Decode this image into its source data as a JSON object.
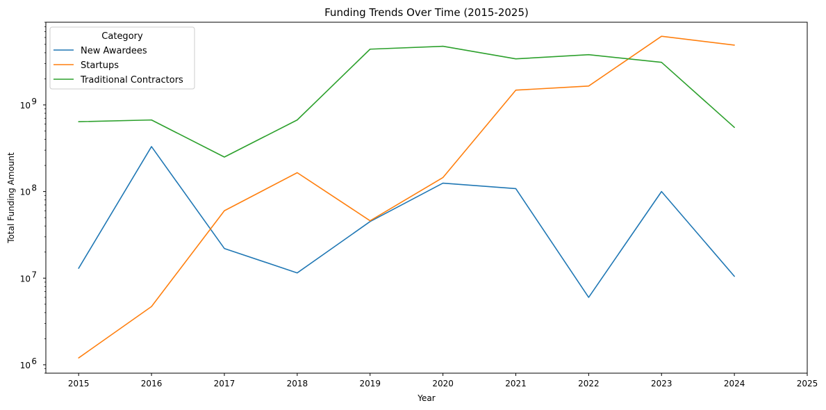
{
  "chart_data": {
    "type": "line",
    "title": "Funding Trends Over Time (2015-2025)",
    "xlabel": "Year",
    "ylabel": "Total Funding Amount",
    "yscale": "log",
    "xlim": [
      2014.55,
      2025.0
    ],
    "ylim": [
      800000,
      9000000000
    ],
    "x_ticks": [
      2015,
      2016,
      2017,
      2018,
      2019,
      2020,
      2021,
      2022,
      2023,
      2024,
      2025
    ],
    "y_ticks": [
      {
        "value": 1000000,
        "base": "10",
        "exp": "6"
      },
      {
        "value": 10000000,
        "base": "10",
        "exp": "7"
      },
      {
        "value": 100000000,
        "base": "10",
        "exp": "8"
      },
      {
        "value": 1000000000,
        "base": "10",
        "exp": "9"
      }
    ],
    "grid": false,
    "legend": {
      "title": "Category",
      "placement": "top-left"
    },
    "x": [
      2015,
      2016,
      2017,
      2018,
      2019,
      2020,
      2021,
      2022,
      2023,
      2024
    ],
    "series": [
      {
        "name": "New Awardees",
        "color": "#1f77b4",
        "values": [
          13000000,
          330000000,
          22000000,
          11500000,
          45000000,
          125000000,
          108000000,
          6000000,
          100000000,
          10500000
        ]
      },
      {
        "name": "Startups",
        "color": "#ff7f0e",
        "values": [
          1200000,
          4700000,
          60000000,
          165000000,
          46000000,
          145000000,
          1480000000,
          1650000000,
          6200000000,
          4900000000
        ]
      },
      {
        "name": "Traditional Contractors",
        "color": "#2ca02c",
        "values": [
          640000000,
          670000000,
          250000000,
          670000000,
          4400000000,
          4750000000,
          3400000000,
          3800000000,
          3100000000,
          550000000
        ]
      }
    ]
  }
}
